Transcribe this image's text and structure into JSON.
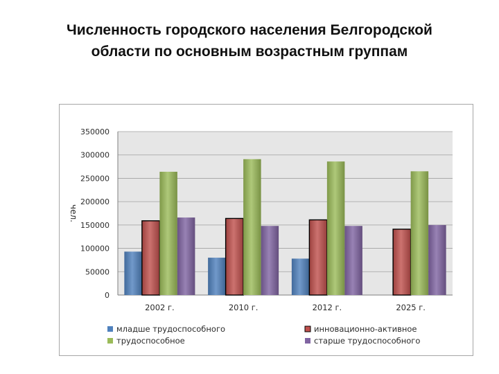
{
  "slide": {
    "title_line1": "Численность городского населения Белгородской",
    "title_line2": "области по основным возрастным группам"
  },
  "chart_data": {
    "type": "bar",
    "categories": [
      "2002 г.",
      "2010 г.",
      "2012 г.",
      "2025 г."
    ],
    "ylabel": "чел.",
    "ylim": [
      0,
      350000
    ],
    "yticks": [
      0,
      50000,
      100000,
      150000,
      200000,
      250000,
      300000,
      350000
    ],
    "grid": true,
    "legend_position": "bottom",
    "series": [
      {
        "name": "младше трудоспособного",
        "color": "#4f81bd",
        "values": [
          93000,
          80000,
          78000,
          null
        ]
      },
      {
        "name": "инновационно-активное",
        "color": "#c0504d",
        "values": [
          159000,
          164000,
          161000,
          141000
        ]
      },
      {
        "name": "трудоспособное",
        "color": "#9bbb59",
        "values": [
          264000,
          291000,
          286000,
          265000
        ]
      },
      {
        "name": "старше трудоспособного",
        "color": "#8064a2",
        "values": [
          166000,
          148000,
          148000,
          150000
        ]
      }
    ]
  }
}
